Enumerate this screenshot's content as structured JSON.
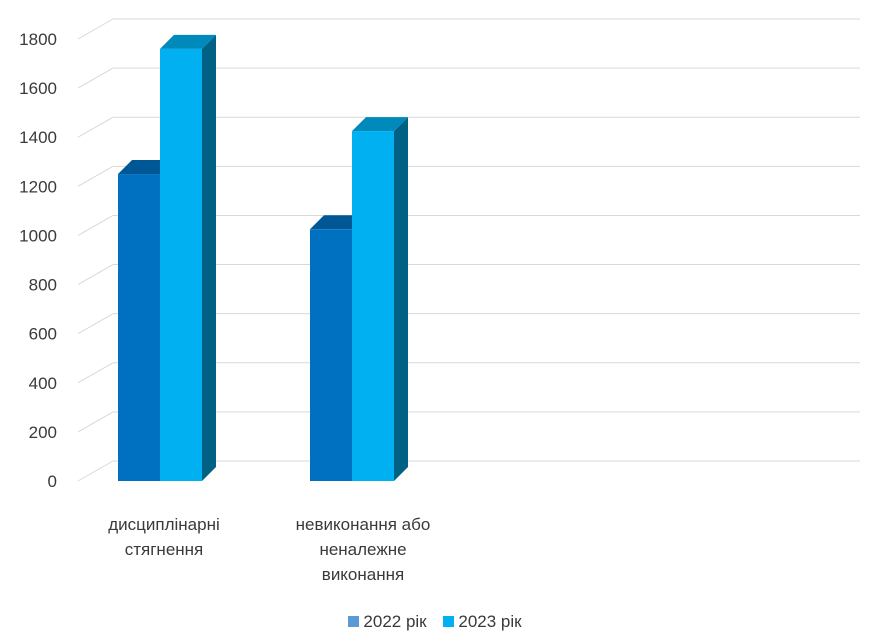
{
  "chart_data": {
    "type": "bar",
    "categories": [
      [
        "дисциплінарні",
        "стягнення"
      ],
      [
        "невиконання або",
        "неналежне",
        "виконання"
      ]
    ],
    "series": [
      {
        "name": "2022 рік",
        "values": [
          1250,
          1025
        ],
        "color": "#0070C0"
      },
      {
        "name": "2023 рік",
        "values": [
          1760,
          1425
        ],
        "color": "#00B0F0"
      }
    ],
    "ylim": [
      0,
      1800
    ],
    "yticks": [
      "0",
      "200",
      "400",
      "600",
      "800",
      "1000",
      "1200",
      "1400",
      "1600",
      "1800"
    ],
    "grid": true,
    "legend_position": "bottom"
  }
}
